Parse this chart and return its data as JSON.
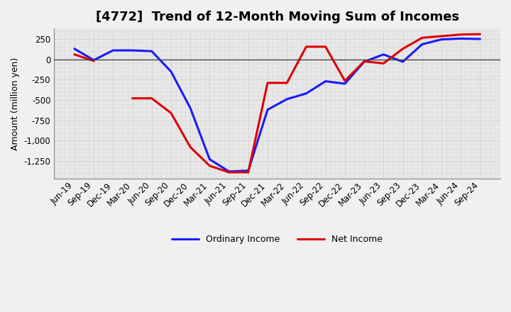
{
  "title": "[4772]  Trend of 12-Month Moving Sum of Incomes",
  "ylabel": "Amount (million yen)",
  "background_color": "#f0f0f0",
  "plot_bg_color": "#e8e8e8",
  "grid_color": "#aaaaaa",
  "x_labels": [
    "Jun-19",
    "Sep-19",
    "Dec-19",
    "Mar-20",
    "Jun-20",
    "Sep-20",
    "Dec-20",
    "Mar-21",
    "Jun-21",
    "Sep-21",
    "Dec-21",
    "Mar-22",
    "Jun-22",
    "Sep-22",
    "Dec-22",
    "Mar-23",
    "Jun-23",
    "Sep-23",
    "Dec-23",
    "Mar-24",
    "Jun-24",
    "Sep-24"
  ],
  "ordinary_income": [
    130,
    -10,
    110,
    110,
    100,
    -150,
    -600,
    -1230,
    -1380,
    -1370,
    -620,
    -490,
    -420,
    -270,
    -300,
    -30,
    60,
    -30,
    185,
    245,
    255,
    250
  ],
  "net_income": [
    60,
    -20,
    null,
    -480,
    -480,
    -660,
    -1080,
    -1310,
    -1390,
    -1390,
    -290,
    -290,
    155,
    155,
    -265,
    -25,
    -50,
    130,
    265,
    285,
    305,
    310
  ],
  "ordinary_color": "#1a1aff",
  "net_color": "#dd0000",
  "line_width": 2.2,
  "yticks": [
    250,
    0,
    -250,
    -500,
    -750,
    -1000,
    -1250
  ],
  "ylim": [
    -1470,
    380
  ],
  "legend_ordinary": "Ordinary Income",
  "legend_net": "Net Income",
  "title_fontsize": 13,
  "axis_fontsize": 8.5,
  "ylabel_fontsize": 9
}
